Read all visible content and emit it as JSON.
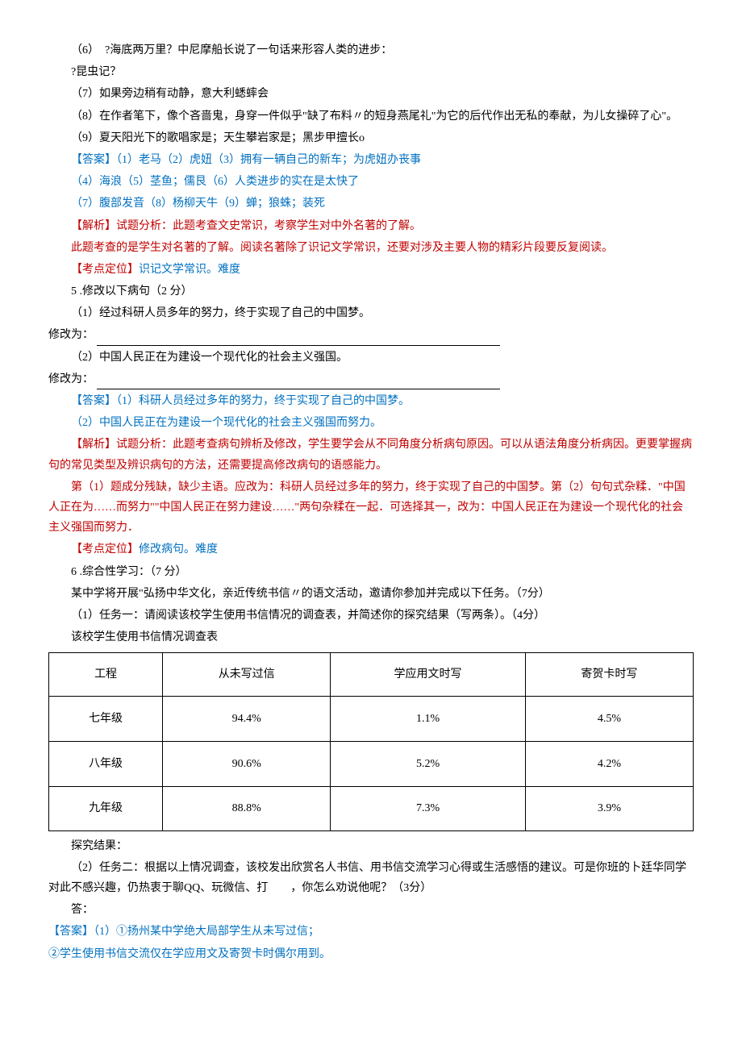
{
  "paragraphs": {
    "p1": "（6）　?海底两万里？中尼摩船长说了一句话来形容人类的进步：",
    "p2": "?昆虫记？",
    "p3": "（7）如果旁边稍有动静，意大利蟋蟀会",
    "p4": "（8）在作者笔下，像个吝啬鬼，身穿一件似乎\"缺了布料〃的短身燕尾礼\"为它的后代作出无私的奉献，为儿女操碎了心\"。",
    "p5": "（9）夏天阳光下的歌唱家是；天生攀岩家是；黑步甲擅长o"
  },
  "answers": {
    "a1": "【答案】（1）老马（2）虎妞（3）拥有一辆自己的新车；为虎妞办丧事",
    "a2": "（4）海浪（5）茎鱼；儒艮（6）人类进步的实在是太快了",
    "a3": "（7）腹部发音（8）杨柳天牛（9）蝉；狼蛛；装死"
  },
  "analysis1": {
    "prefix": "【解析】",
    "text1": "试题分析：此题考查文史常识，考察学生对中外名著的了解。",
    "text2": "此题考查的是学生对名著的了解。阅读名著除了识记文学常识，还要对涉及主要人物的精彩片段要反复阅读。"
  },
  "point1": {
    "prefix": "【考点定位】",
    "text": "识记文学常识。难度"
  },
  "q5": {
    "title": "5   .修改以下病句（2 分）",
    "q1": "（1）经过科研人员多年的努力，终于实现了自己的中国梦。",
    "fix1_label": "修改为：",
    "q2": "（2）中国人民正在为建设一个现代化的社会主义强国。",
    "fix2_label": "修改为："
  },
  "q5_answers": {
    "a1": "【答案】（1）科研人员经过多年的努力，终于实现了自己的中国梦。",
    "a2": "（2）中国人民正在为建设一个现代化的社会主义强国而努力。"
  },
  "analysis2": {
    "prefix": "【解析】",
    "text1": "试题分析：此题考查病句辨析及修改，学生要学会从不同角度分析病句原因。可以从语法角度分析病因。更要掌握病句的常见类型及辨识病句的方法，还需要提高修改病句的语感能力。",
    "text2": "第（1）题成分残缺，缺少主语。应改为：科研人员经过多年的努力，终于实现了自己的中国梦。第（2）句句式杂糅．\"中国人正在为……而努力\"\"中国人民正在努力建设……\"两句杂糅在一起．可选择其一，改为：中国人民正在为建设一个现代化的社会主义强国而努力．"
  },
  "point2": {
    "prefix": "【考点定位】",
    "text": "修改病句。难度"
  },
  "q6": {
    "title": "6   .综合性学习：（7 分）",
    "p1": "某中学将开展\"弘扬中华文化，亲近传统书信〃的语文活动，邀请你参加并完成以下任务。（7分）",
    "p2": "（1）任务一：请阅读该校学生使用书信情况的调查表，并简述你的探究结果（写两条）。（4分）",
    "p3": "该校学生使用书信情况调查表"
  },
  "table": {
    "headers": [
      "工程",
      "从未写过信",
      "学应用文时写",
      "寄贺卡时写"
    ],
    "rows": [
      [
        "七年级",
        "94.4%",
        "1.1%",
        "4.5%"
      ],
      [
        "八年级",
        "90.6%",
        "5.2%",
        "4.2%"
      ],
      [
        "九年级",
        "88.8%",
        "7.3%",
        "3.9%"
      ]
    ],
    "col_widths": [
      "25%",
      "25%",
      "25%",
      "25%"
    ]
  },
  "q6_after": {
    "p1": "探究结果：",
    "p2": "（2）任务二：根据以上情况调查，该校发出欣赏名人书信、用书信交流学习心得或生活感悟的建议。可是你班的卜廷华同学对此不感兴趣，仍热衷于聊QQ、玩微信、打　　，你怎么劝说他呢？（3分）",
    "p3": "答："
  },
  "q6_answers": {
    "a1": "【答案】（1）①扬州某中学绝大局部学生从未写过信；",
    "a2": "②学生使用书信交流仅在学应用文及寄贺卡时偶尔用到。"
  }
}
